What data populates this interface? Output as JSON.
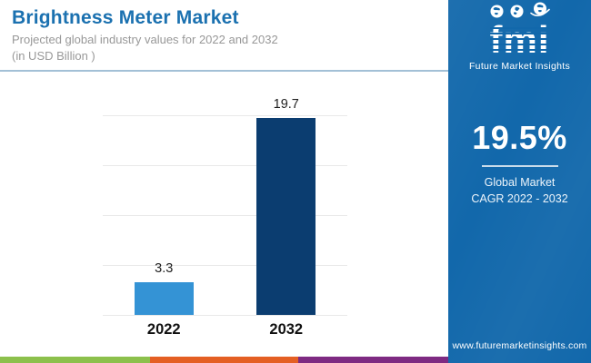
{
  "header": {
    "title": "Brightness Meter Market",
    "subtitle_line1": "Projected global industry values for 2022 and 2032",
    "subtitle_line2": "(in USD Billion )"
  },
  "chart_data": {
    "type": "bar",
    "title": "Brightness Meter Market",
    "subtitle": "Projected global industry values for 2022 and 2032 (in USD Billion)",
    "categories": [
      "2022",
      "2032"
    ],
    "values": [
      3.3,
      19.7
    ],
    "value_labels": [
      "3.3",
      "19.7"
    ],
    "bar_colors": [
      "#3493d5",
      "#0b3d70"
    ],
    "unit": "USD Billion",
    "xlabel": "",
    "ylabel": "",
    "ylim": [
      0,
      20
    ],
    "gridline_step": 5,
    "grid": "horizontal-only",
    "legend": "none"
  },
  "sidebar": {
    "logo_text": "fmi",
    "logo_subtext": "Future Market Insights",
    "cagr_value": "19.5%",
    "cagr_label_line1": "Global Market",
    "cagr_label_line2": "CAGR 2022 - 2032",
    "website": "www.futuremarketinsights.com"
  },
  "footer": {
    "stripe_colors": [
      "#8cc04c",
      "#e45f24",
      "#7e2a82"
    ]
  },
  "colors": {
    "sidebar_background": "#1268ab",
    "title_text": "#1b71b0",
    "subtitle_text": "#989898",
    "header_divider": "#a3c0d6",
    "gridline": "#e9e9e9",
    "bar_2022": "#3493d5",
    "bar_2032": "#0b3d70"
  }
}
